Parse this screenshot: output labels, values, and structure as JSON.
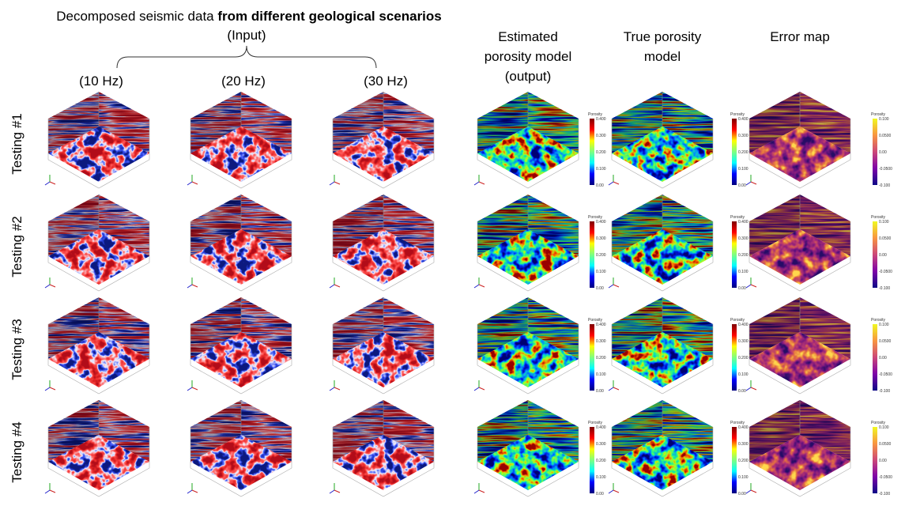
{
  "header": {
    "title_plain": "Decomposed seismic data ",
    "title_bold": "from different geological scenarios",
    "subtitle": "(Input)"
  },
  "input_columns": [
    "(10 Hz)",
    "(20 Hz)",
    "(30 Hz)"
  ],
  "output_columns": [
    {
      "lines": [
        "Estimated",
        "porosity model",
        "(output)"
      ]
    },
    {
      "lines": [
        "True porosity",
        "model"
      ]
    },
    {
      "lines": [
        "Error map"
      ]
    }
  ],
  "rows": [
    "Testing #1",
    "Testing #2",
    "Testing #3",
    "Testing #4"
  ],
  "colorbars": {
    "porosity": {
      "title": "Porosity",
      "ticks": [
        "0.400",
        "0.300",
        "0.200",
        "0.100",
        "0.00"
      ]
    },
    "error": {
      "title": "Porosity",
      "ticks": [
        "0.100",
        "0.0500",
        "0.00",
        "-0.0500",
        "-0.100"
      ]
    }
  }
}
